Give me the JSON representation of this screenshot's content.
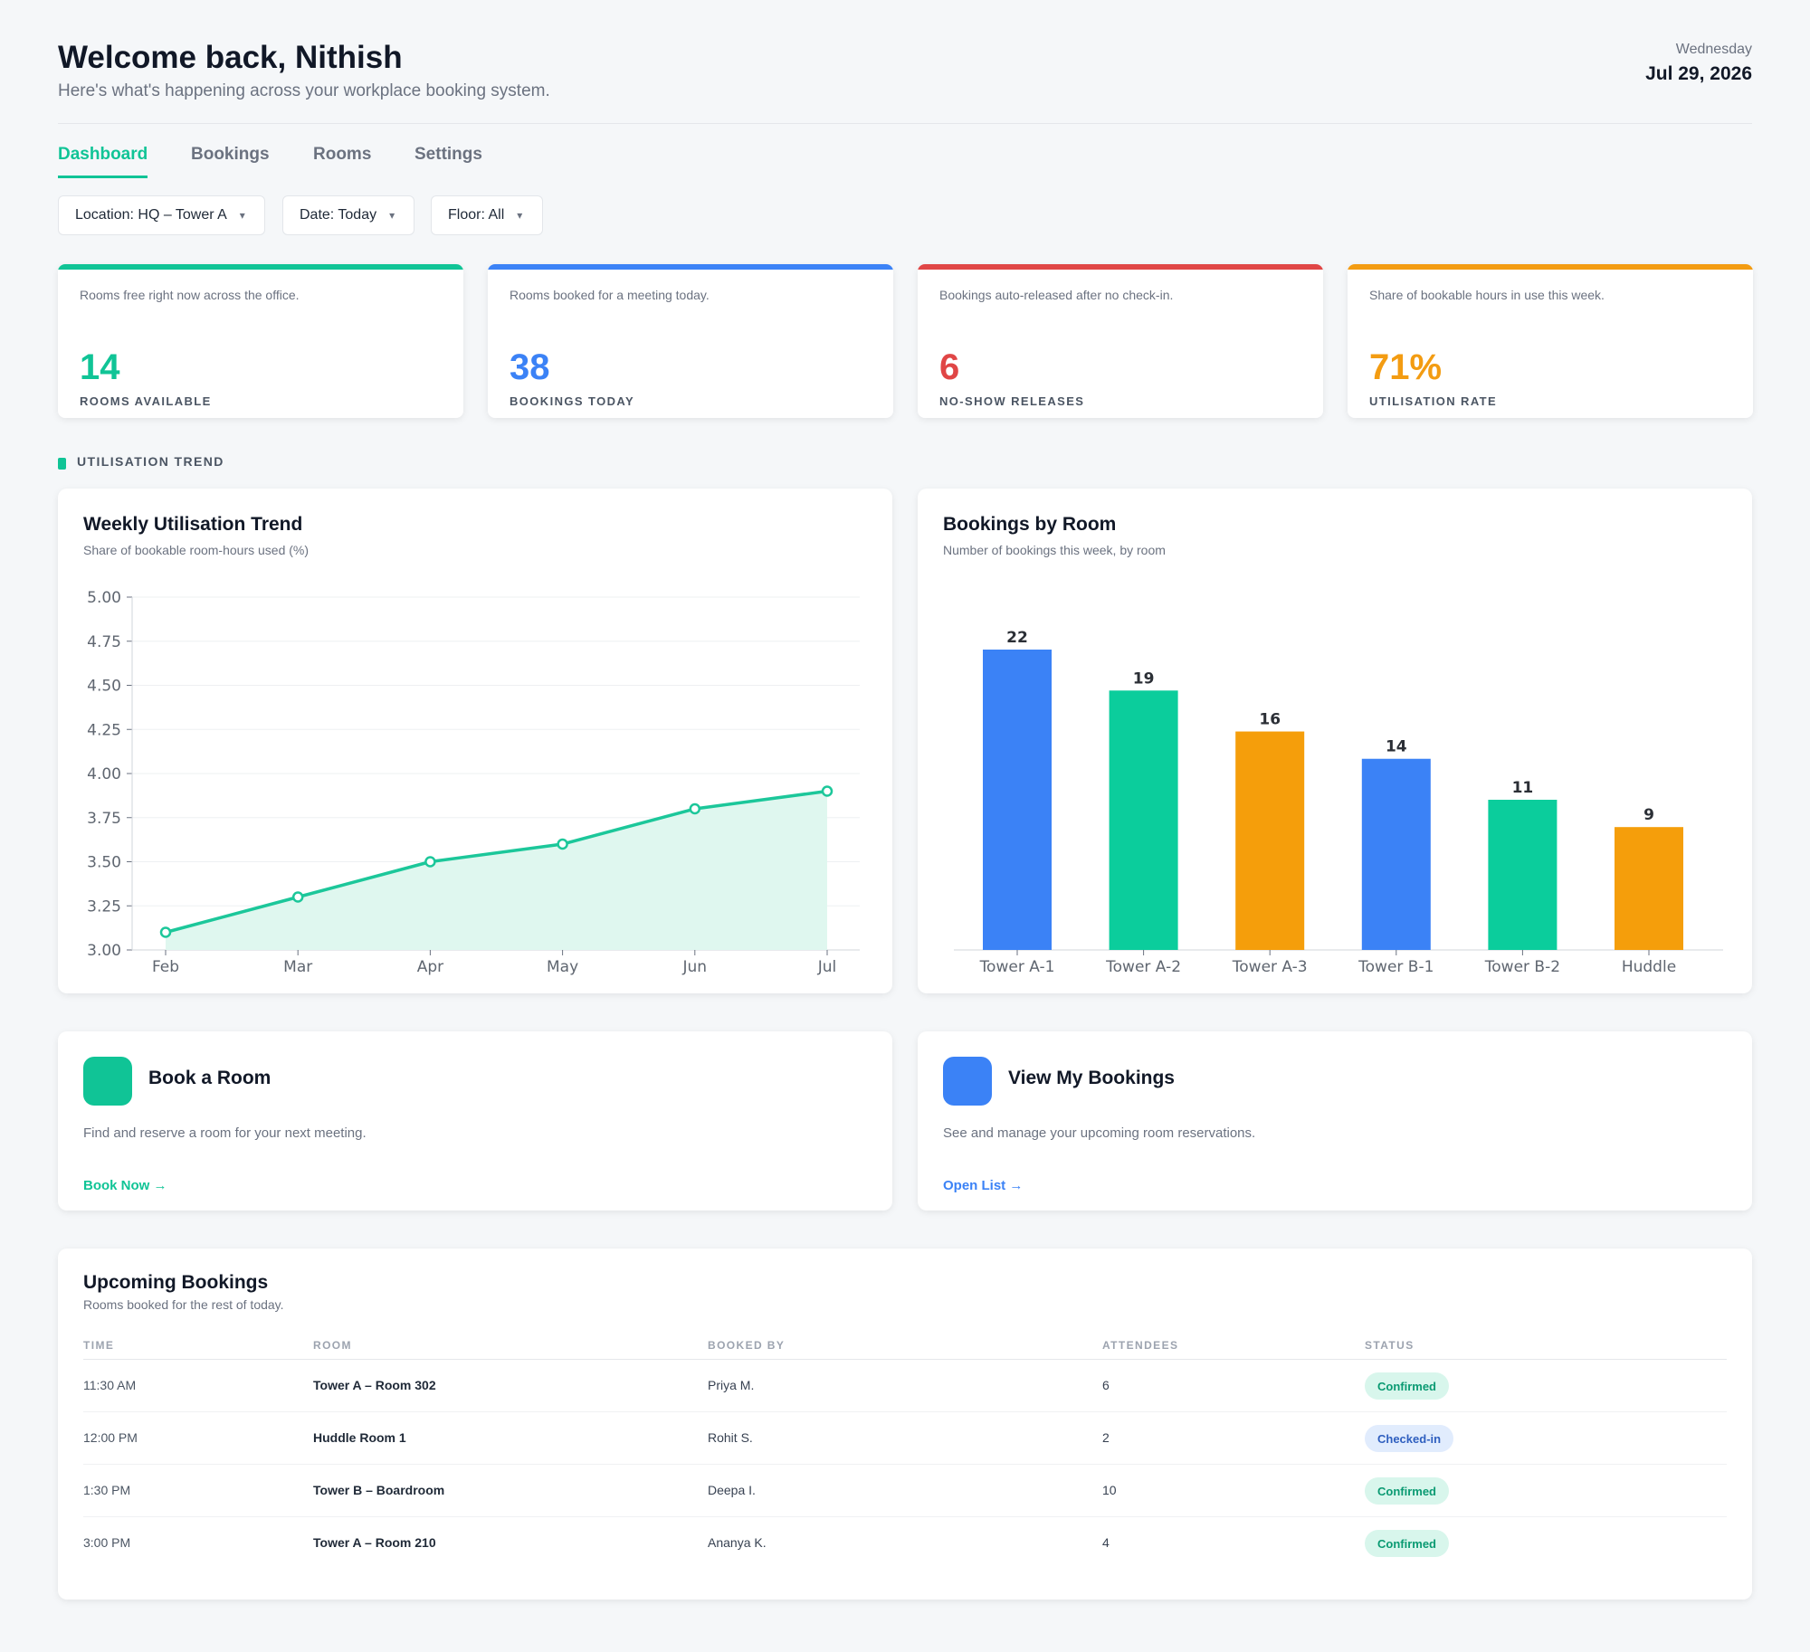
{
  "header": {
    "welcome": "Welcome back, Nithish",
    "subtitle": "Here's what's happening across your workplace booking system.",
    "weekday": "Wednesday",
    "date": "Jul 29, 2026"
  },
  "tabs": [
    {
      "label": "Dashboard",
      "active": true
    },
    {
      "label": "Bookings",
      "active": false
    },
    {
      "label": "Rooms",
      "active": false
    },
    {
      "label": "Settings",
      "active": false
    }
  ],
  "filters": [
    {
      "label": "Location: HQ – Tower A"
    },
    {
      "label": "Date: Today"
    },
    {
      "label": "Floor: All"
    }
  ],
  "filter_icon": "chevron-down-icon",
  "stats": [
    {
      "desc": "Rooms free right now across the office.",
      "value": "14",
      "label": "ROOMS AVAILABLE",
      "color": "#10c496"
    },
    {
      "desc": "Rooms booked for a meeting today.",
      "value": "38",
      "label": "BOOKINGS TODAY",
      "color": "#3b82f6"
    },
    {
      "desc": "Bookings auto-released after no check-in.",
      "value": "6",
      "label": "NO-SHOW RELEASES",
      "color": "#e04646"
    },
    {
      "desc": "Share of bookable hours in use this week.",
      "value": "71%",
      "label": "UTILISATION RATE",
      "color": "#f39c12"
    }
  ],
  "section_label": "UTILISATION TREND",
  "panels": {
    "trend": {
      "title": "Weekly Utilisation Trend",
      "subtitle": "Share of bookable room-hours used (%)"
    },
    "rooms": {
      "title": "Bookings by Room",
      "subtitle": "Number of bookings this week, by room"
    }
  },
  "chart_data": [
    {
      "type": "area",
      "title": "Weekly Utilisation Trend",
      "x": [
        "Feb",
        "Mar",
        "Apr",
        "May",
        "Jun",
        "Jul"
      ],
      "y": [
        3.1,
        3.3,
        3.5,
        3.6,
        3.8,
        3.9
      ],
      "ylim": [
        3.0,
        5.0
      ],
      "yticks": [
        "3.00",
        "3.25",
        "3.50",
        "3.75",
        "4.00",
        "4.25",
        "4.50",
        "4.75",
        "5.00"
      ],
      "grid": true,
      "color": "#1cc79a",
      "fill": "#dff7ef"
    },
    {
      "type": "bar",
      "title": "Bookings by Room",
      "categories": [
        "Tower A-1",
        "Tower A-2",
        "Tower A-3",
        "Tower B-1",
        "Tower B-2",
        "Huddle"
      ],
      "values": [
        22,
        19,
        16,
        14,
        11,
        9
      ],
      "ylim": [
        0,
        22
      ],
      "colors": [
        "#3b82f6",
        "#0bcd9c",
        "#f59e0b",
        "#3b82f6",
        "#0bcd9c",
        "#f59e0b"
      ]
    }
  ],
  "actions": [
    {
      "title": "Book a Room",
      "desc": "Find and reserve a room for your next meeting.",
      "link": "Book Now  →",
      "color": "#10c496"
    },
    {
      "title": "View My Bookings",
      "desc": "See and manage your upcoming room reservations.",
      "link": "Open List  →",
      "color": "#3b82f6"
    }
  ],
  "upcoming": {
    "title": "Upcoming Bookings",
    "subtitle": "Rooms booked for the rest of today.",
    "columns": [
      "TIME",
      "ROOM",
      "BOOKED BY",
      "ATTENDEES",
      "STATUS"
    ],
    "rows": [
      {
        "time": "11:30 AM",
        "room": "Tower A – Room 302",
        "by": "Priya M.",
        "attendees": "6",
        "status": "Confirmed"
      },
      {
        "time": "12:00 PM",
        "room": "Huddle Room 1",
        "by": "Rohit S.",
        "attendees": "2",
        "status": "Checked-in"
      },
      {
        "time": "1:30 PM",
        "room": "Tower B – Boardroom",
        "by": "Deepa I.",
        "attendees": "10",
        "status": "Confirmed"
      },
      {
        "time": "3:00 PM",
        "room": "Tower A – Room 210",
        "by": "Ananya K.",
        "attendees": "4",
        "status": "Confirmed"
      }
    ]
  }
}
